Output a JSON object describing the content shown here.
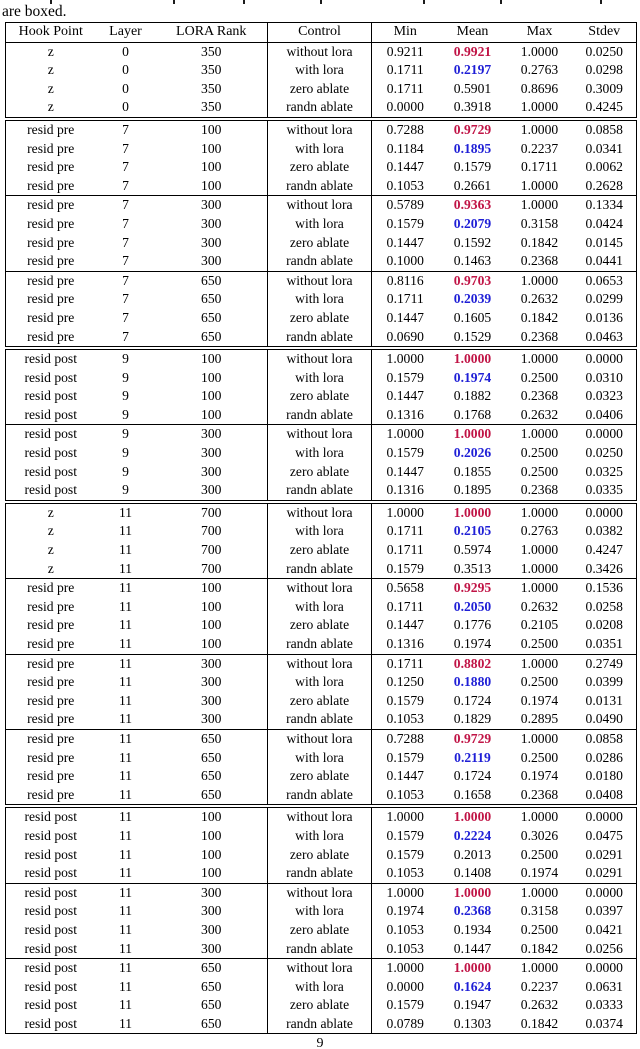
{
  "caption": {
    "fragment": "are boxed."
  },
  "footer": {
    "page_number": "9"
  },
  "colors": {
    "mean_without_lora_red": "#c01345",
    "mean_with_lora_blue": "#1f1fd6",
    "text": "#000000",
    "border": "#000000"
  },
  "table": {
    "columns": [
      "Hook Point",
      "Layer",
      "LORA Rank",
      "Control",
      "Min",
      "Mean",
      "Max",
      "Stdev"
    ],
    "blocks": [
      {
        "hook_point": "z",
        "layer": "0",
        "lora_rank": "350",
        "separator_before": "none",
        "rows": [
          {
            "control": "without lora",
            "min": "0.9211",
            "mean": "0.9921",
            "max": "1.0000",
            "stdev": "0.0250",
            "mean_style": "red"
          },
          {
            "control": "with lora",
            "min": "0.1711",
            "mean": "0.2197",
            "max": "0.2763",
            "stdev": "0.0298",
            "mean_style": "blue"
          },
          {
            "control": "zero ablate",
            "min": "0.1711",
            "mean": "0.5901",
            "max": "0.8696",
            "stdev": "0.3009",
            "mean_style": "plain"
          },
          {
            "control": "randn ablate",
            "min": "0.0000",
            "mean": "0.3918",
            "max": "1.0000",
            "stdev": "0.4245",
            "mean_style": "plain"
          }
        ]
      },
      {
        "hook_point": "resid pre",
        "layer": "7",
        "lora_rank": "100",
        "separator_before": "double",
        "rows": [
          {
            "control": "without lora",
            "min": "0.7288",
            "mean": "0.9729",
            "max": "1.0000",
            "stdev": "0.0858",
            "mean_style": "red"
          },
          {
            "control": "with lora",
            "min": "0.1184",
            "mean": "0.1895",
            "max": "0.2237",
            "stdev": "0.0341",
            "mean_style": "blue"
          },
          {
            "control": "zero ablate",
            "min": "0.1447",
            "mean": "0.1579",
            "max": "0.1711",
            "stdev": "0.0062",
            "mean_style": "plain"
          },
          {
            "control": "randn ablate",
            "min": "0.1053",
            "mean": "0.2661",
            "max": "1.0000",
            "stdev": "0.2628",
            "mean_style": "plain"
          }
        ]
      },
      {
        "hook_point": "resid pre",
        "layer": "7",
        "lora_rank": "300",
        "separator_before": "single",
        "rows": [
          {
            "control": "without lora",
            "min": "0.5789",
            "mean": "0.9363",
            "max": "1.0000",
            "stdev": "0.1334",
            "mean_style": "red"
          },
          {
            "control": "with lora",
            "min": "0.1579",
            "mean": "0.2079",
            "max": "0.3158",
            "stdev": "0.0424",
            "mean_style": "blue"
          },
          {
            "control": "zero ablate",
            "min": "0.1447",
            "mean": "0.1592",
            "max": "0.1842",
            "stdev": "0.0145",
            "mean_style": "plain"
          },
          {
            "control": "randn ablate",
            "min": "0.1000",
            "mean": "0.1463",
            "max": "0.2368",
            "stdev": "0.0441",
            "mean_style": "plain"
          }
        ]
      },
      {
        "hook_point": "resid pre",
        "layer": "7",
        "lora_rank": "650",
        "separator_before": "single",
        "rows": [
          {
            "control": "without lora",
            "min": "0.8116",
            "mean": "0.9703",
            "max": "1.0000",
            "stdev": "0.0653",
            "mean_style": "red"
          },
          {
            "control": "with lora",
            "min": "0.1711",
            "mean": "0.2039",
            "max": "0.2632",
            "stdev": "0.0299",
            "mean_style": "blue"
          },
          {
            "control": "zero ablate",
            "min": "0.1447",
            "mean": "0.1605",
            "max": "0.1842",
            "stdev": "0.0136",
            "mean_style": "plain"
          },
          {
            "control": "randn ablate",
            "min": "0.0690",
            "mean": "0.1529",
            "max": "0.2368",
            "stdev": "0.0463",
            "mean_style": "plain"
          }
        ]
      },
      {
        "hook_point": "resid post",
        "layer": "9",
        "lora_rank": "100",
        "separator_before": "double",
        "rows": [
          {
            "control": "without lora",
            "min": "1.0000",
            "mean": "1.0000",
            "max": "1.0000",
            "stdev": "0.0000",
            "mean_style": "red"
          },
          {
            "control": "with lora",
            "min": "0.1579",
            "mean": "0.1974",
            "max": "0.2500",
            "stdev": "0.0310",
            "mean_style": "blue"
          },
          {
            "control": "zero ablate",
            "min": "0.1447",
            "mean": "0.1882",
            "max": "0.2368",
            "stdev": "0.0323",
            "mean_style": "plain"
          },
          {
            "control": "randn ablate",
            "min": "0.1316",
            "mean": "0.1768",
            "max": "0.2632",
            "stdev": "0.0406",
            "mean_style": "plain"
          }
        ]
      },
      {
        "hook_point": "resid post",
        "layer": "9",
        "lora_rank": "300",
        "separator_before": "single",
        "rows": [
          {
            "control": "without lora",
            "min": "1.0000",
            "mean": "1.0000",
            "max": "1.0000",
            "stdev": "0.0000",
            "mean_style": "red"
          },
          {
            "control": "with lora",
            "min": "0.1579",
            "mean": "0.2026",
            "max": "0.2500",
            "stdev": "0.0250",
            "mean_style": "blue"
          },
          {
            "control": "zero ablate",
            "min": "0.1447",
            "mean": "0.1855",
            "max": "0.2500",
            "stdev": "0.0325",
            "mean_style": "plain"
          },
          {
            "control": "randn ablate",
            "min": "0.1316",
            "mean": "0.1895",
            "max": "0.2368",
            "stdev": "0.0335",
            "mean_style": "plain"
          }
        ]
      },
      {
        "hook_point": "z",
        "layer": "11",
        "lora_rank": "700",
        "separator_before": "double",
        "rows": [
          {
            "control": "without lora",
            "min": "1.0000",
            "mean": "1.0000",
            "max": "1.0000",
            "stdev": "0.0000",
            "mean_style": "red"
          },
          {
            "control": "with lora",
            "min": "0.1711",
            "mean": "0.2105",
            "max": "0.2763",
            "stdev": "0.0382",
            "mean_style": "blue"
          },
          {
            "control": "zero ablate",
            "min": "0.1711",
            "mean": "0.5974",
            "max": "1.0000",
            "stdev": "0.4247",
            "mean_style": "plain"
          },
          {
            "control": "randn ablate",
            "min": "0.1579",
            "mean": "0.3513",
            "max": "1.0000",
            "stdev": "0.3426",
            "mean_style": "plain"
          }
        ]
      },
      {
        "hook_point": "resid pre",
        "layer": "11",
        "lora_rank": "100",
        "separator_before": "single",
        "rows": [
          {
            "control": "without lora",
            "min": "0.5658",
            "mean": "0.9295",
            "max": "1.0000",
            "stdev": "0.1536",
            "mean_style": "red"
          },
          {
            "control": "with lora",
            "min": "0.1711",
            "mean": "0.2050",
            "max": "0.2632",
            "stdev": "0.0258",
            "mean_style": "blue"
          },
          {
            "control": "zero ablate",
            "min": "0.1447",
            "mean": "0.1776",
            "max": "0.2105",
            "stdev": "0.0208",
            "mean_style": "plain"
          },
          {
            "control": "randn ablate",
            "min": "0.1316",
            "mean": "0.1974",
            "max": "0.2500",
            "stdev": "0.0351",
            "mean_style": "plain"
          }
        ]
      },
      {
        "hook_point": "resid pre",
        "layer": "11",
        "lora_rank": "300",
        "separator_before": "single",
        "rows": [
          {
            "control": "without lora",
            "min": "0.1711",
            "mean": "0.8802",
            "max": "1.0000",
            "stdev": "0.2749",
            "mean_style": "red"
          },
          {
            "control": "with lora",
            "min": "0.1250",
            "mean": "0.1880",
            "max": "0.2500",
            "stdev": "0.0399",
            "mean_style": "blue"
          },
          {
            "control": "zero ablate",
            "min": "0.1579",
            "mean": "0.1724",
            "max": "0.1974",
            "stdev": "0.0131",
            "mean_style": "plain"
          },
          {
            "control": "randn ablate",
            "min": "0.1053",
            "mean": "0.1829",
            "max": "0.2895",
            "stdev": "0.0490",
            "mean_style": "plain"
          }
        ]
      },
      {
        "hook_point": "resid pre",
        "layer": "11",
        "lora_rank": "650",
        "separator_before": "single",
        "rows": [
          {
            "control": "without lora",
            "min": "0.7288",
            "mean": "0.9729",
            "max": "1.0000",
            "stdev": "0.0858",
            "mean_style": "red"
          },
          {
            "control": "with lora",
            "min": "0.1579",
            "mean": "0.2119",
            "max": "0.2500",
            "stdev": "0.0286",
            "mean_style": "blue"
          },
          {
            "control": "zero ablate",
            "min": "0.1447",
            "mean": "0.1724",
            "max": "0.1974",
            "stdev": "0.0180",
            "mean_style": "plain"
          },
          {
            "control": "randn ablate",
            "min": "0.1053",
            "mean": "0.1658",
            "max": "0.2368",
            "stdev": "0.0408",
            "mean_style": "plain"
          }
        ]
      },
      {
        "hook_point": "resid post",
        "layer": "11",
        "lora_rank": "100",
        "separator_before": "double",
        "rows": [
          {
            "control": "without lora",
            "min": "1.0000",
            "mean": "1.0000",
            "max": "1.0000",
            "stdev": "0.0000",
            "mean_style": "red"
          },
          {
            "control": "with lora",
            "min": "0.1579",
            "mean": "0.2224",
            "max": "0.3026",
            "stdev": "0.0475",
            "mean_style": "blue"
          },
          {
            "control": "zero ablate",
            "min": "0.1579",
            "mean": "0.2013",
            "max": "0.2500",
            "stdev": "0.0291",
            "mean_style": "plain"
          },
          {
            "control": "randn ablate",
            "min": "0.1053",
            "mean": "0.1408",
            "max": "0.1974",
            "stdev": "0.0291",
            "mean_style": "plain"
          }
        ]
      },
      {
        "hook_point": "resid post",
        "layer": "11",
        "lora_rank": "300",
        "separator_before": "single",
        "rows": [
          {
            "control": "without lora",
            "min": "1.0000",
            "mean": "1.0000",
            "max": "1.0000",
            "stdev": "0.0000",
            "mean_style": "red"
          },
          {
            "control": "with lora",
            "min": "0.1974",
            "mean": "0.2368",
            "max": "0.3158",
            "stdev": "0.0397",
            "mean_style": "blue"
          },
          {
            "control": "zero ablate",
            "min": "0.1053",
            "mean": "0.1934",
            "max": "0.2500",
            "stdev": "0.0421",
            "mean_style": "plain"
          },
          {
            "control": "randn ablate",
            "min": "0.1053",
            "mean": "0.1447",
            "max": "0.1842",
            "stdev": "0.0256",
            "mean_style": "plain"
          }
        ]
      },
      {
        "hook_point": "resid post",
        "layer": "11",
        "lora_rank": "650",
        "separator_before": "single",
        "rows": [
          {
            "control": "without lora",
            "min": "1.0000",
            "mean": "1.0000",
            "max": "1.0000",
            "stdev": "0.0000",
            "mean_style": "red"
          },
          {
            "control": "with lora",
            "min": "0.0000",
            "mean": "0.1624",
            "max": "0.2237",
            "stdev": "0.0631",
            "mean_style": "blue"
          },
          {
            "control": "zero ablate",
            "min": "0.1579",
            "mean": "0.1947",
            "max": "0.2632",
            "stdev": "0.0333",
            "mean_style": "plain"
          },
          {
            "control": "randn ablate",
            "min": "0.0789",
            "mean": "0.1303",
            "max": "0.1842",
            "stdev": "0.0374",
            "mean_style": "plain"
          }
        ]
      }
    ]
  }
}
